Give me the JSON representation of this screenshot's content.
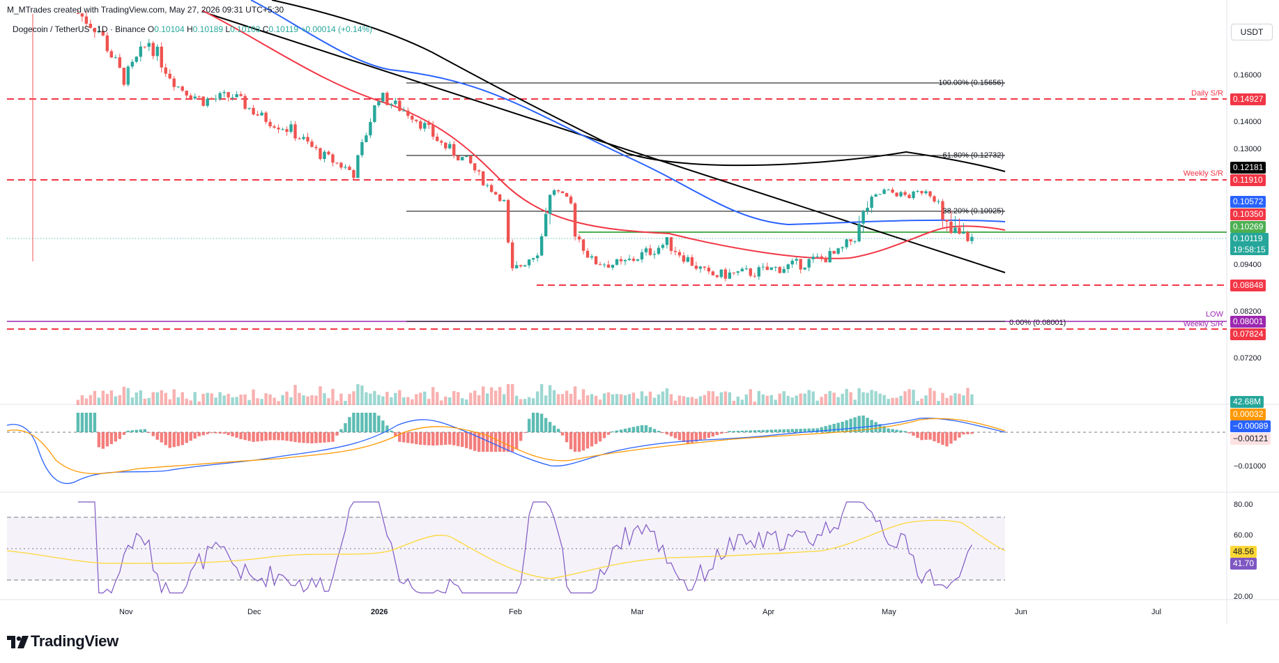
{
  "header": {
    "credit": "M_MTrades created with TradingView.com, May 27, 2026 09:31 UTC+5:30",
    "symbol": "Dogecoin / TetherUS · 1D · Binance",
    "open_label": "O",
    "open": "0.10104",
    "high_label": "H",
    "high": "0.10189",
    "low_label": "L",
    "low": "0.10103",
    "close_label": "C",
    "close": "0.10119",
    "change": "+0.00014 (+0.14%)",
    "quote_unit": "USDT"
  },
  "colors": {
    "up": "#26a69a",
    "down": "#ef5350",
    "ema50": "#f23645",
    "ema100": "#2962ff",
    "ema200": "#000000",
    "support": "#f23645",
    "green_level": "#4caf50",
    "macd": "#2962ff",
    "signal": "#ff9800",
    "rsi": "#7e57c2",
    "rsi_ma": "#fdd835"
  },
  "price_axis": {
    "ticks": [
      "0.16000",
      "0.14000",
      "0.13000",
      "0.09400",
      "0.08200",
      "0.07200"
    ]
  },
  "price_tags": {
    "ema200": "0.12181",
    "ema100": "0.10572",
    "ema50": "0.10350",
    "green_level": "0.10269",
    "last": "0.10119",
    "countdown": "19:58:15",
    "weekly_upper": "0.11910",
    "daily": "0.14927",
    "support_mid": "0.08848",
    "low": "0.08001",
    "weekly_lower": "0.07824"
  },
  "level_labels": {
    "daily_sr": "Daily S/R",
    "weekly_sr_upper": "Weekly S/R",
    "low": "LOW",
    "weekly_sr_lower": "Weekly S/R"
  },
  "fib": {
    "f100": "100.00% (0.15656)",
    "f618": "61.80% (0.12732)",
    "f382": "38.20% (0.10925)",
    "f0": "0.00% (0.08001)"
  },
  "volume": {
    "value": "42.68M"
  },
  "macd": {
    "signal_value": "0.00032",
    "macd_value": "−0.00089",
    "hist_value": "−0.00121",
    "tick": "−0.01000"
  },
  "rsi": {
    "ticks": [
      "80.00",
      "60.00",
      "20.00"
    ],
    "ma_value": "48.56",
    "value": "41.70"
  },
  "time_axis": [
    "Nov",
    "Dec",
    "2026",
    "Feb",
    "Mar",
    "Apr",
    "May",
    "Jun",
    "Jul"
  ],
  "footer": {
    "brand": "TradingView"
  },
  "chart_data": {
    "type": "candlestick",
    "title": "Dogecoin / TetherUS · 1D · Binance",
    "xlabel": "",
    "ylabel": "",
    "x_range": [
      "2025-10-08",
      "2026-07-27"
    ],
    "y_range": [
      0.068,
      0.172
    ],
    "horizontal_levels": [
      {
        "label": "Daily S/R",
        "value": 0.14927,
        "style": "dashed"
      },
      {
        "label": "Weekly S/R",
        "value": 0.1191,
        "style": "dashed"
      },
      {
        "label": "",
        "value": 0.08848,
        "style": "dashed"
      },
      {
        "label": "Weekly S/R",
        "value": 0.07824,
        "style": "dashed"
      },
      {
        "label": "",
        "value": 0.10269,
        "style": "solid"
      }
    ],
    "fibonacci": [
      {
        "level": "100.00%",
        "value": 0.15656
      },
      {
        "level": "61.80%",
        "value": 0.12732
      },
      {
        "level": "38.20%",
        "value": 0.10925
      },
      {
        "level": "0.00%",
        "value": 0.08001
      }
    ],
    "trendline": {
      "from": {
        "date": "2025-10-20",
        "value": 0.178
      },
      "to": {
        "date": "2026-05-26",
        "value": 0.0912
      }
    },
    "moving_averages": {
      "ema50": 0.1035,
      "ema100": 0.10572,
      "ema200": 0.12181
    },
    "price_path": [
      {
        "date": "2025-10-25",
        "value": 0.182
      },
      {
        "date": "2025-10-30",
        "value": 0.176
      },
      {
        "date": "2025-11-05",
        "value": 0.158
      },
      {
        "date": "2025-11-11",
        "value": 0.172
      },
      {
        "date": "2025-11-18",
        "value": 0.155
      },
      {
        "date": "2025-11-24",
        "value": 0.149
      },
      {
        "date": "2025-12-01",
        "value": 0.151
      },
      {
        "date": "2025-12-08",
        "value": 0.142
      },
      {
        "date": "2025-12-15",
        "value": 0.137
      },
      {
        "date": "2025-12-22",
        "value": 0.128
      },
      {
        "date": "2025-12-30",
        "value": 0.121
      },
      {
        "date": "2026-01-05",
        "value": 0.151
      },
      {
        "date": "2026-01-13",
        "value": 0.143
      },
      {
        "date": "2026-01-20",
        "value": 0.132
      },
      {
        "date": "2026-01-27",
        "value": 0.124
      },
      {
        "date": "2026-02-04",
        "value": 0.106
      },
      {
        "date": "2026-02-06",
        "value": 0.092
      },
      {
        "date": "2026-02-12",
        "value": 0.098
      },
      {
        "date": "2026-02-16",
        "value": 0.113
      },
      {
        "date": "2026-02-25",
        "value": 0.095
      },
      {
        "date": "2026-03-04",
        "value": 0.094
      },
      {
        "date": "2026-03-15",
        "value": 0.1
      },
      {
        "date": "2026-03-25",
        "value": 0.091
      },
      {
        "date": "2026-04-05",
        "value": 0.092
      },
      {
        "date": "2026-04-15",
        "value": 0.094
      },
      {
        "date": "2026-04-25",
        "value": 0.097
      },
      {
        "date": "2026-05-01",
        "value": 0.104
      },
      {
        "date": "2026-05-06",
        "value": 0.112
      },
      {
        "date": "2026-05-12",
        "value": 0.109
      },
      {
        "date": "2026-05-16",
        "value": 0.113
      },
      {
        "date": "2026-05-20",
        "value": 0.103
      },
      {
        "date": "2026-05-27",
        "value": 0.10119
      }
    ],
    "last_close": 0.10119,
    "volume_last": "42.68M",
    "macd": {
      "macd": -0.00089,
      "signal": 0.00032,
      "histogram": -0.00121
    },
    "rsi": {
      "value": 41.7,
      "ma": 48.56,
      "bands": [
        70,
        30
      ]
    }
  }
}
